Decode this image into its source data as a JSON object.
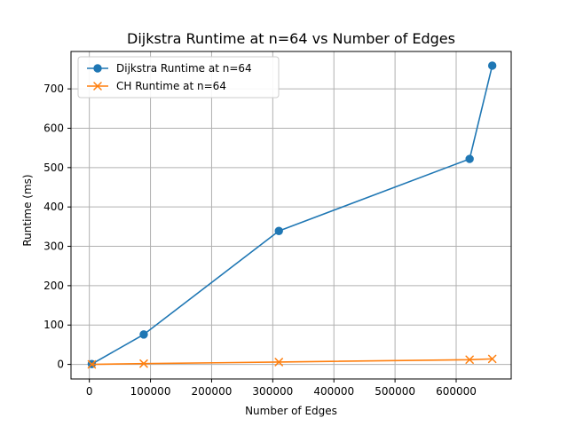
{
  "chart_data": {
    "type": "line",
    "title": "Dijkstra Runtime at n=64 vs Number of Edges",
    "xlabel": "Number of Edges",
    "ylabel": "Runtime (ms)",
    "x_ticks": [
      "0",
      "100000",
      "200000",
      "300000",
      "400000",
      "500000",
      "600000"
    ],
    "y_ticks": [
      "0",
      "100",
      "200",
      "300",
      "400",
      "500",
      "600",
      "700"
    ],
    "xlim": [
      -30000,
      690000
    ],
    "ylim": [
      -37,
      795
    ],
    "grid": true,
    "legend_position": "upper-left",
    "series": [
      {
        "name": "Dijkstra Runtime at n=64",
        "color": "#1f77b4",
        "marker": "circle",
        "points": [
          {
            "x": 4000,
            "y": 1
          },
          {
            "x": 89000,
            "y": 76
          },
          {
            "x": 310000,
            "y": 339
          },
          {
            "x": 622000,
            "y": 522
          },
          {
            "x": 659000,
            "y": 759
          }
        ]
      },
      {
        "name": "CH Runtime at n=64",
        "color": "#ff7f0e",
        "marker": "x",
        "points": [
          {
            "x": 4000,
            "y": 0
          },
          {
            "x": 89000,
            "y": 2
          },
          {
            "x": 310000,
            "y": 6
          },
          {
            "x": 622000,
            "y": 12
          },
          {
            "x": 659000,
            "y": 14
          }
        ]
      }
    ]
  }
}
